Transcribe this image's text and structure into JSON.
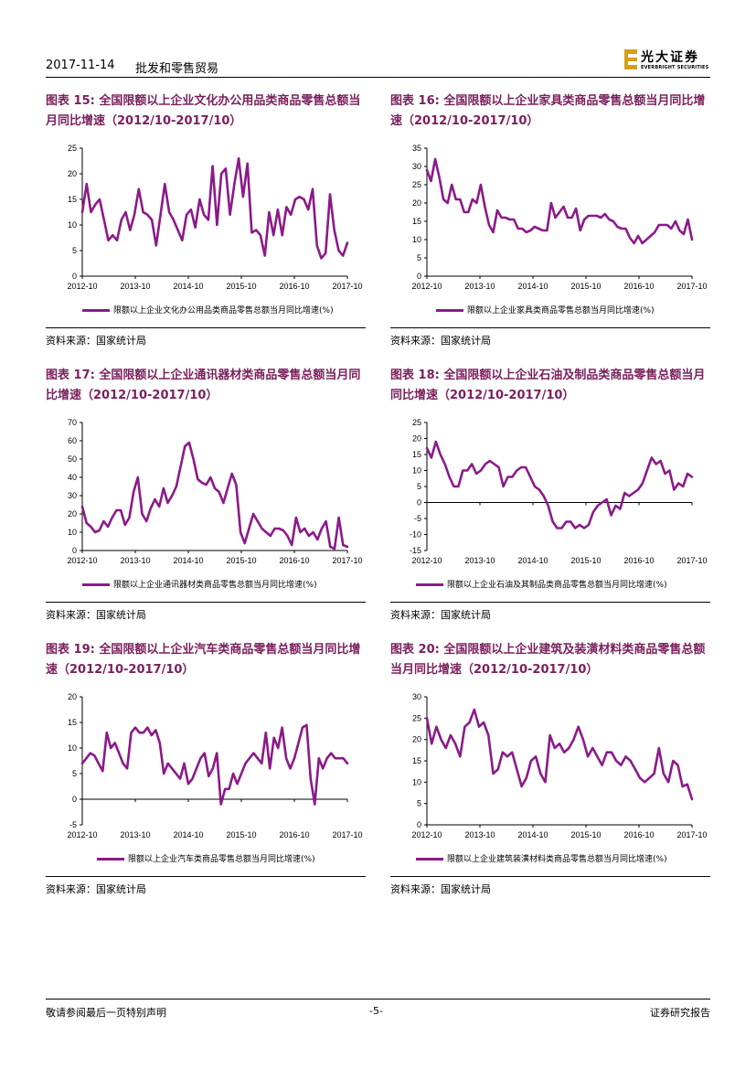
{
  "header": {
    "date": "2017-11-14",
    "sector": "批发和零售贸易",
    "logo_cn": "光大证券",
    "logo_en": "EVERBRIGHT SECURITIES"
  },
  "colors": {
    "series": "#8b1a89",
    "title": "#7a1f5c",
    "logo": "#d4a017"
  },
  "panels": [
    {
      "title": "图表 15: 全国限额以上企业文化办公用品类商品零售总额当月同比增速（2012/10-2017/10）",
      "legend": "限额以上企业文化办公用品类商品零售总额当月同比增速(%)",
      "source": "资料来源：国家统计局"
    },
    {
      "title": "图表 16: 全国限额以上企业家具类商品零售总额当月同比增速（2012/10-2017/10）",
      "legend": "限额以上企业家具类商品零售总额当月同比增速(%)",
      "source": "资料来源：国家统计局"
    },
    {
      "title": "图表 17: 全国限额以上企业通讯器材类商品零售总额当月同比增速（2012/10-2017/10）",
      "legend": "限额以上企业通讯器材类商品零售总额当月同比增速(%)",
      "source": "资料来源：国家统计局"
    },
    {
      "title": "图表 18: 全国限额以上企业石油及制品类商品零售总额当月同比增速（2012/10-2017/10）",
      "legend": "限额以上企业石油及其制品类商品零售总额当月同比增速(%)",
      "source": "资料来源：国家统计局"
    },
    {
      "title": "图表 19: 全国限额以上企业汽车类商品零售总额当月同比增速（2012/10-2017/10）",
      "legend": "限额以上企业汽车类商品零售总额当月同比增速(%)",
      "source": "资料来源：国家统计局"
    },
    {
      "title": "图表 20: 全国限额以上企业建筑及装潢材料类商品零售总额当月同比增速（2012/10-2017/10）",
      "legend": "限额以上企业建筑装潢材料类商品零售总额当月同比增速(%)",
      "source": "资料来源：国家统计局"
    }
  ],
  "chart_data": [
    {
      "type": "line",
      "title": "全国限额以上企业文化办公用品类商品零售总额当月同比增速（2012/10-2017/10）",
      "xlabel": "",
      "ylabel": "",
      "ylim": [
        0,
        25
      ],
      "yticks": [
        0,
        5,
        10,
        15,
        20,
        25
      ],
      "xticks": [
        "2012-10",
        "2013-10",
        "2014-10",
        "2015-10",
        "2016-10",
        "2017-10"
      ],
      "series": [
        {
          "name": "限额以上企业文化办公用品类商品零售总额当月同比增速(%)",
          "values": [
            12.5,
            18,
            12.5,
            14,
            15,
            11,
            7,
            8,
            7,
            11,
            12.5,
            9,
            12,
            17,
            12.5,
            12,
            11,
            6,
            12,
            18,
            12.5,
            11,
            9,
            7,
            12,
            13,
            9.5,
            15,
            12,
            11,
            21.5,
            10,
            20,
            21,
            12,
            18,
            23,
            15.5,
            22,
            8.5,
            9,
            8,
            4,
            12.5,
            8,
            13,
            8,
            13.5,
            12,
            15,
            15.5,
            15,
            13,
            17,
            6,
            3.5,
            4.5,
            16,
            9,
            5,
            4,
            6.5
          ]
        }
      ]
    },
    {
      "type": "line",
      "title": "全国限额以上企业家具类商品零售总额当月同比增速（2012/10-2017/10）",
      "xlabel": "",
      "ylabel": "",
      "ylim": [
        0,
        35
      ],
      "yticks": [
        0,
        5,
        10,
        15,
        20,
        25,
        30,
        35
      ],
      "xticks": [
        "2012-10",
        "2013-10",
        "2014-10",
        "2015-10",
        "2016-10",
        "2017-10"
      ],
      "series": [
        {
          "name": "限额以上企业家具类商品零售总额当月同比增速(%)",
          "values": [
            29,
            26,
            32,
            27,
            21,
            20,
            25,
            21,
            21,
            17.5,
            17.5,
            21,
            20,
            25,
            19,
            14,
            12,
            18,
            16,
            16,
            15.5,
            15.5,
            13,
            13,
            12,
            12.5,
            13.5,
            13,
            12.5,
            12.5,
            20,
            16,
            17.5,
            19,
            16,
            16,
            18.5,
            12.5,
            15.5,
            16.5,
            16.5,
            16.5,
            16,
            17,
            15.5,
            15,
            13.5,
            13,
            13,
            10.5,
            9,
            11,
            9,
            10,
            11,
            12,
            14,
            14,
            14,
            13,
            15,
            12.5,
            11.5,
            15.5,
            10
          ]
        }
      ]
    },
    {
      "type": "line",
      "title": "全国限额以上企业通讯器材类商品零售总额当月同比增速（2012/10-2017/10）",
      "xlabel": "",
      "ylabel": "",
      "ylim": [
        0,
        70
      ],
      "yticks": [
        0,
        10,
        20,
        30,
        40,
        50,
        60,
        70
      ],
      "xticks": [
        "2012-10",
        "2013-10",
        "2014-10",
        "2015-10",
        "2016-10",
        "2017-10"
      ],
      "series": [
        {
          "name": "限额以上企业通讯器材类商品零售总额当月同比增速(%)",
          "values": [
            24,
            15,
            13,
            10,
            11,
            16,
            13,
            18,
            22,
            22,
            14,
            18,
            32,
            40,
            20,
            16,
            23,
            28,
            24,
            34,
            26,
            30,
            35,
            46,
            57,
            59,
            50,
            39,
            37,
            36,
            40,
            34,
            32,
            26,
            34,
            42,
            36,
            10,
            4,
            12,
            20,
            16,
            12,
            10,
            8,
            12,
            12,
            11,
            8,
            3,
            18,
            10,
            12,
            8,
            10,
            6,
            12,
            16,
            2,
            1,
            18,
            3,
            2
          ]
        }
      ]
    },
    {
      "type": "line",
      "title": "全国限额以上企业石油及制品类商品零售总额当月同比增速（2012/10-2017/10）",
      "xlabel": "",
      "ylabel": "",
      "ylim": [
        -15,
        25
      ],
      "yticks": [
        -15,
        -10,
        -5,
        0,
        5,
        10,
        15,
        20,
        25
      ],
      "xticks": [
        "2012-10",
        "2013-10",
        "2014-10",
        "2015-10",
        "2016-10",
        "2017-10"
      ],
      "series": [
        {
          "name": "限额以上企业石油及其制品类商品零售总额当月同比增速(%)",
          "values": [
            17,
            14,
            19,
            15,
            12,
            8,
            5,
            5,
            10,
            10,
            12,
            9,
            10,
            12,
            13,
            12,
            11,
            5,
            8,
            8,
            10,
            11,
            11,
            8,
            5,
            4,
            2,
            -1,
            -6,
            -8,
            -8,
            -6,
            -6,
            -8,
            -7,
            -8,
            -7,
            -3,
            -1,
            0,
            1,
            -4,
            -1,
            -2,
            3,
            2,
            3,
            4,
            6,
            10,
            14,
            12,
            13,
            9,
            10,
            4,
            6,
            5,
            9,
            8
          ]
        }
      ]
    },
    {
      "type": "line",
      "title": "全国限额以上企业汽车类商品零售总额当月同比增速（2012/10-2017/10）",
      "xlabel": "",
      "ylabel": "",
      "ylim": [
        -5,
        20
      ],
      "yticks": [
        -5,
        0,
        5,
        10,
        15,
        20
      ],
      "xticks": [
        "2012-10",
        "2013-10",
        "2014-10",
        "2015-10",
        "2016-10",
        "2017-10"
      ],
      "series": [
        {
          "name": "限额以上企业汽车类商品零售总额当月同比增速(%)",
          "values": [
            7,
            8,
            9,
            8.5,
            7,
            5.5,
            13,
            10,
            11,
            9,
            7,
            6,
            13,
            14,
            13,
            13,
            14,
            12.5,
            13.5,
            11,
            5,
            7,
            6,
            5,
            4,
            7,
            3,
            4,
            6,
            8,
            9,
            4.5,
            6,
            9,
            -1,
            2,
            2,
            5,
            3,
            5,
            7,
            8,
            9,
            8,
            7,
            13,
            6,
            12,
            10,
            14,
            8,
            6,
            8,
            11,
            14,
            14.5,
            4,
            -1,
            8,
            6,
            8,
            9,
            8,
            8,
            8,
            7
          ]
        }
      ]
    },
    {
      "type": "line",
      "title": "全国限额以上企业建筑及装潢材料类商品零售总额当月同比增速（2012/10-2017/10）",
      "xlabel": "",
      "ylabel": "",
      "ylim": [
        0,
        30
      ],
      "yticks": [
        0,
        5,
        10,
        15,
        20,
        25,
        30
      ],
      "xticks": [
        "2012-10",
        "2013-10",
        "2014-10",
        "2015-10",
        "2016-10",
        "2017-10"
      ],
      "series": [
        {
          "name": "限额以上企业建筑装潢材料类商品零售总额当月同比增速(%)",
          "values": [
            25,
            19,
            23,
            20,
            18,
            21,
            19,
            16,
            23,
            24,
            27,
            23,
            24,
            21,
            12,
            13,
            17,
            16,
            17,
            13,
            9,
            11,
            15,
            16,
            12,
            10,
            21,
            18,
            19,
            17,
            18,
            20,
            23,
            20,
            16,
            18,
            16,
            14,
            17,
            17,
            15,
            14,
            16,
            15,
            13,
            11,
            10,
            11,
            12,
            18,
            12,
            10,
            15,
            14,
            9,
            9.5,
            6
          ]
        }
      ]
    }
  ],
  "footer": {
    "left": "敬请参阅最后一页特别声明",
    "page": "-5-",
    "right": "证券研究报告"
  }
}
